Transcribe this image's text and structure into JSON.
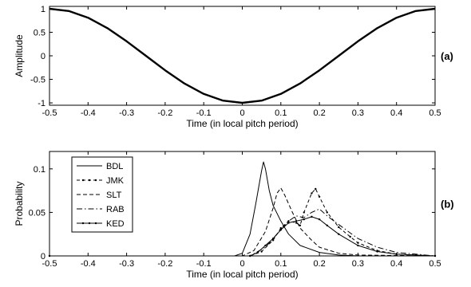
{
  "chart_data": [
    {
      "id": "a",
      "type": "line",
      "panel_label": "(a)",
      "xlabel": "Time (in local pitch period)",
      "ylabel": "Amplitude",
      "xlim": [
        -0.5,
        0.5
      ],
      "ylim": [
        -1.05,
        1.05
      ],
      "xticks": [
        -0.5,
        -0.4,
        -0.3,
        -0.2,
        -0.1,
        0,
        0.1,
        0.2,
        0.3,
        0.4,
        0.5
      ],
      "xtick_labels": [
        "-0.5",
        "-0.4",
        "-0.3",
        "-0.2",
        "-0.1",
        "0",
        "0.1",
        "0.2",
        "0.3",
        "0.4",
        "0.5"
      ],
      "yticks": [
        1,
        0.5,
        0,
        -0.5,
        -1
      ],
      "ytick_labels": [
        "1",
        "0.5",
        "0",
        "-0.5",
        "-1"
      ],
      "grid": false,
      "series": [
        {
          "x": [
            -0.5,
            -0.45,
            -0.4,
            -0.35,
            -0.3,
            -0.25,
            -0.2,
            -0.15,
            -0.1,
            -0.05,
            0,
            0.05,
            0.1,
            0.15,
            0.2,
            0.25,
            0.3,
            0.35,
            0.4,
            0.45,
            0.5
          ],
          "y": [
            1,
            0.951,
            0.809,
            0.588,
            0.309,
            0,
            -0.309,
            -0.588,
            -0.809,
            -0.951,
            -1,
            -0.951,
            -0.809,
            -0.588,
            -0.309,
            0,
            0.309,
            0.588,
            0.809,
            0.951,
            1
          ]
        }
      ]
    },
    {
      "id": "b",
      "type": "line",
      "panel_label": "(b)",
      "xlabel": "Time (in local pitch period)",
      "ylabel": "Probability",
      "xlim": [
        -0.5,
        0.5
      ],
      "ylim": [
        0,
        0.12
      ],
      "xticks": [
        -0.5,
        -0.4,
        -0.3,
        -0.2,
        -0.1,
        0,
        0.1,
        0.2,
        0.3,
        0.4,
        0.5
      ],
      "xtick_labels": [
        "-0.5",
        "-0.4",
        "-0.3",
        "-0.2",
        "-0.1",
        "0",
        "0.1",
        "0.2",
        "0.3",
        "0.4",
        "0.5"
      ],
      "yticks": [
        0,
        0.05,
        0.1
      ],
      "ytick_labels": [
        "0",
        "0.05",
        "0.1"
      ],
      "grid": false,
      "legend": "top-left",
      "series": [
        {
          "name": "BDL",
          "style": "solid",
          "x": [
            -0.5,
            -0.02,
            0,
            0.02,
            0.035,
            0.05,
            0.055,
            0.06,
            0.07,
            0.08,
            0.1,
            0.12,
            0.15,
            0.2,
            0.25,
            0.3,
            0.5
          ],
          "y": [
            0,
            0,
            0.003,
            0.025,
            0.06,
            0.098,
            0.108,
            0.1,
            0.075,
            0.058,
            0.04,
            0.025,
            0.012,
            0.004,
            0.001,
            0,
            0
          ]
        },
        {
          "name": "JMK",
          "style": "dashdot-dots",
          "x": [
            -0.5,
            0.02,
            0.05,
            0.08,
            0.1,
            0.12,
            0.14,
            0.15,
            0.16,
            0.18,
            0.19,
            0.2,
            0.22,
            0.25,
            0.28,
            0.3,
            0.35,
            0.4,
            0.45,
            0.5
          ],
          "y": [
            0,
            0,
            0.005,
            0.018,
            0.032,
            0.04,
            0.038,
            0.035,
            0.05,
            0.072,
            0.077,
            0.068,
            0.05,
            0.033,
            0.022,
            0.015,
            0.006,
            0.002,
            0.001,
            0
          ]
        },
        {
          "name": "SLT",
          "style": "dashed",
          "x": [
            -0.5,
            0,
            0.03,
            0.06,
            0.08,
            0.09,
            0.1,
            0.11,
            0.13,
            0.15,
            0.18,
            0.2,
            0.25,
            0.3,
            0.5
          ],
          "y": [
            0,
            0,
            0.006,
            0.028,
            0.055,
            0.072,
            0.078,
            0.07,
            0.05,
            0.032,
            0.018,
            0.01,
            0.003,
            0.001,
            0
          ]
        },
        {
          "name": "RAB",
          "style": "dashdot",
          "x": [
            -0.5,
            0.02,
            0.06,
            0.08,
            0.1,
            0.12,
            0.14,
            0.16,
            0.18,
            0.2,
            0.22,
            0.25,
            0.3,
            0.35,
            0.4,
            0.5
          ],
          "y": [
            0,
            0,
            0.01,
            0.02,
            0.03,
            0.04,
            0.046,
            0.044,
            0.05,
            0.054,
            0.046,
            0.036,
            0.02,
            0.01,
            0.004,
            0
          ]
        },
        {
          "name": "KED",
          "style": "solid-dots",
          "x": [
            -0.5,
            0.02,
            0.04,
            0.06,
            0.08,
            0.1,
            0.12,
            0.14,
            0.16,
            0.18,
            0.2,
            0.22,
            0.25,
            0.3,
            0.35,
            0.4,
            0.5
          ],
          "y": [
            0,
            0,
            0.004,
            0.012,
            0.02,
            0.03,
            0.038,
            0.04,
            0.042,
            0.045,
            0.042,
            0.035,
            0.025,
            0.012,
            0.005,
            0.002,
            0
          ]
        }
      ]
    }
  ]
}
